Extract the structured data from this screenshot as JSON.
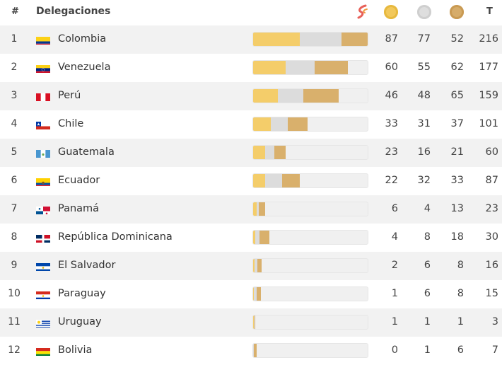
{
  "header": {
    "rank_label": "#",
    "delegation_label": "Delegaciones",
    "total_label": "T"
  },
  "colors": {
    "gold": "#f4cd6a",
    "silver": "#dcdcdc",
    "bronze": "#d9b06c"
  },
  "rows": [
    {
      "rank": "1",
      "country": "Colombia",
      "flag": "colombia-flag",
      "gold": 87,
      "silver": 77,
      "bronze": 52,
      "total": 216
    },
    {
      "rank": "2",
      "country": "Venezuela",
      "flag": "venezuela-flag",
      "gold": 60,
      "silver": 55,
      "bronze": 62,
      "total": 177
    },
    {
      "rank": "3",
      "country": "Perú",
      "flag": "peru-flag",
      "gold": 46,
      "silver": 48,
      "bronze": 65,
      "total": 159
    },
    {
      "rank": "4",
      "country": "Chile",
      "flag": "chile-flag",
      "gold": 33,
      "silver": 31,
      "bronze": 37,
      "total": 101
    },
    {
      "rank": "5",
      "country": "Guatemala",
      "flag": "guatemala-flag",
      "gold": 23,
      "silver": 16,
      "bronze": 21,
      "total": 60
    },
    {
      "rank": "6",
      "country": "Ecuador",
      "flag": "ecuador-flag",
      "gold": 22,
      "silver": 32,
      "bronze": 33,
      "total": 87
    },
    {
      "rank": "7",
      "country": "Panamá",
      "flag": "panama-flag",
      "gold": 6,
      "silver": 4,
      "bronze": 13,
      "total": 23
    },
    {
      "rank": "8",
      "country": "República Dominicana",
      "flag": "dominican-republic-flag",
      "gold": 4,
      "silver": 8,
      "bronze": 18,
      "total": 30
    },
    {
      "rank": "9",
      "country": "El Salvador",
      "flag": "el-salvador-flag",
      "gold": 2,
      "silver": 6,
      "bronze": 8,
      "total": 16
    },
    {
      "rank": "10",
      "country": "Paraguay",
      "flag": "paraguay-flag",
      "gold": 1,
      "silver": 6,
      "bronze": 8,
      "total": 15
    },
    {
      "rank": "11",
      "country": "Uruguay",
      "flag": "uruguay-flag",
      "gold": 1,
      "silver": 1,
      "bronze": 1,
      "total": 3
    },
    {
      "rank": "12",
      "country": "Bolivia",
      "flag": "bolivia-flag",
      "gold": 0,
      "silver": 1,
      "bronze": 6,
      "total": 7
    }
  ]
}
